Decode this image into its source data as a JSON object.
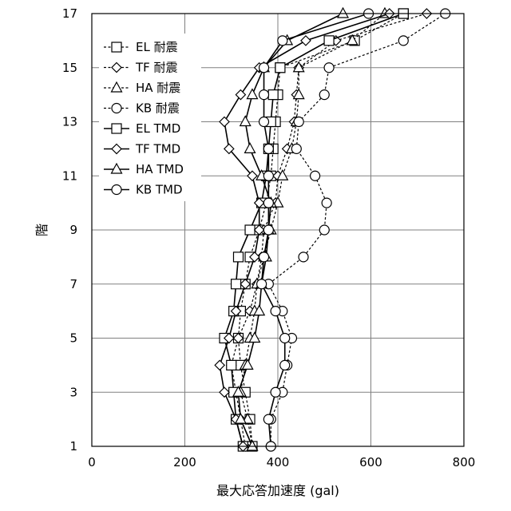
{
  "chart_data": {
    "type": "line",
    "xlabel": "最大応答加速度 (gal)",
    "ylabel": "階",
    "xlim": [
      0,
      800
    ],
    "ylim": [
      1,
      17
    ],
    "xticks": [
      0,
      200,
      400,
      600,
      800
    ],
    "yticks": [
      1,
      3,
      5,
      7,
      9,
      11,
      13,
      15,
      17
    ],
    "grid": true,
    "legend_position": "top-left",
    "y": [
      1,
      2,
      3,
      4,
      5,
      6,
      7,
      8,
      9,
      10,
      11,
      12,
      13,
      14,
      15,
      16,
      17
    ],
    "series": [
      {
        "name": "EL 耐震",
        "marker": "square",
        "dashed": true,
        "values": [
          345,
          340,
          330,
          320,
          315,
          320,
          330,
          340,
          360,
          375,
          385,
          390,
          395,
          400,
          405,
          565,
          670
        ]
      },
      {
        "name": "TF 耐震",
        "marker": "diamond",
        "dashed": true,
        "values": [
          330,
          320,
          310,
          300,
          315,
          340,
          355,
          365,
          370,
          395,
          400,
          420,
          435,
          440,
          445,
          525,
          720
        ]
      },
      {
        "name": "HA 耐震",
        "marker": "triangle",
        "dashed": true,
        "values": [
          345,
          335,
          320,
          330,
          340,
          350,
          355,
          370,
          385,
          400,
          410,
          430,
          440,
          445,
          445,
          560,
          630
        ]
      },
      {
        "name": "KB 耐震",
        "marker": "circle",
        "dashed": true,
        "values": [
          385,
          385,
          410,
          420,
          430,
          410,
          380,
          455,
          500,
          505,
          480,
          440,
          445,
          500,
          510,
          670,
          760
        ]
      },
      {
        "name": "EL TMD",
        "marker": "square",
        "dashed": false,
        "values": [
          325,
          310,
          305,
          300,
          285,
          305,
          310,
          315,
          340,
          365,
          375,
          380,
          385,
          390,
          405,
          510,
          670
        ]
      },
      {
        "name": "TF TMD",
        "marker": "diamond",
        "dashed": false,
        "values": [
          325,
          310,
          285,
          275,
          295,
          310,
          330,
          350,
          360,
          360,
          345,
          295,
          285,
          320,
          360,
          460,
          640
        ]
      },
      {
        "name": "HA TMD",
        "marker": "triangle",
        "dashed": false,
        "values": [
          345,
          320,
          315,
          335,
          350,
          360,
          365,
          375,
          380,
          385,
          365,
          340,
          330,
          345,
          370,
          420,
          540
        ]
      },
      {
        "name": "KB TMD",
        "marker": "circle",
        "dashed": false,
        "values": [
          385,
          380,
          395,
          415,
          415,
          395,
          365,
          370,
          380,
          380,
          380,
          380,
          370,
          370,
          370,
          410,
          595
        ]
      }
    ]
  }
}
